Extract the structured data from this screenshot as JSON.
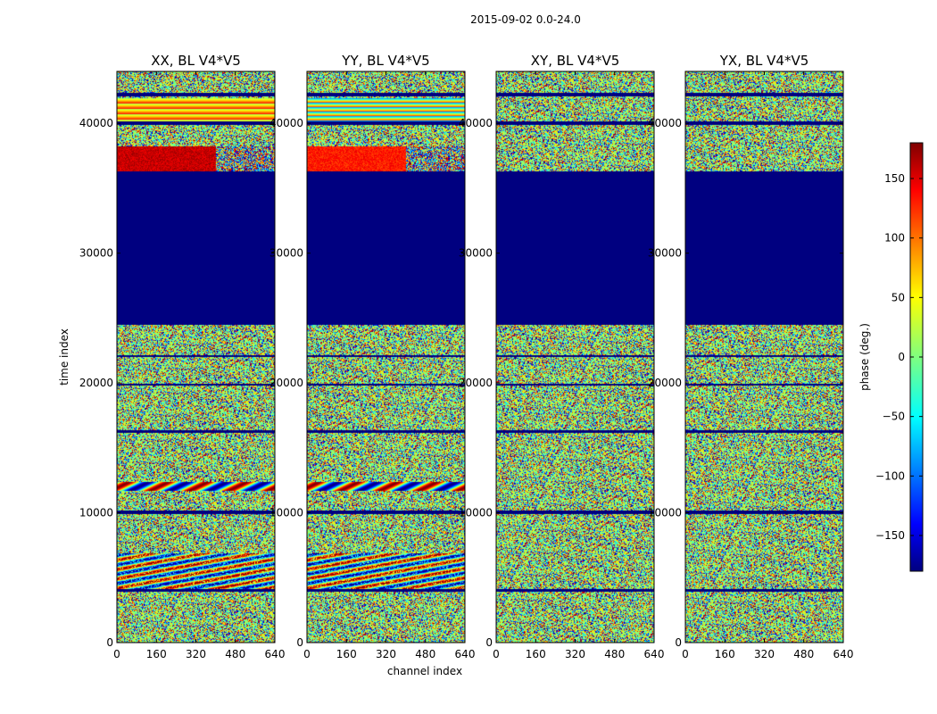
{
  "chart_data": {
    "type": "heatmap",
    "title": "2015-09-02 0.0-24.0",
    "xlabel": "channel index",
    "ylabel": "time index",
    "xlim": [
      0,
      640
    ],
    "ylim": [
      0,
      44000
    ],
    "xticks": [
      0,
      160,
      320,
      480,
      640
    ],
    "yticks": [
      0,
      10000,
      20000,
      30000,
      40000
    ],
    "panels": [
      {
        "id": "xx",
        "title": "XX, BL V4*V5"
      },
      {
        "id": "yy",
        "title": "YY, BL V4*V5"
      },
      {
        "id": "xy",
        "title": "XY, BL V4*V5"
      },
      {
        "id": "yx",
        "title": "YX, BL V4*V5"
      }
    ],
    "colorbar": {
      "label": "phase (deg.)",
      "range": [
        -180,
        180
      ],
      "ticks": [
        -150,
        -100,
        -50,
        0,
        50,
        100,
        150
      ],
      "tick_labels": [
        "−150",
        "−100",
        "−50",
        "0",
        "50",
        "100",
        "150"
      ],
      "colormap": "jet"
    }
  }
}
